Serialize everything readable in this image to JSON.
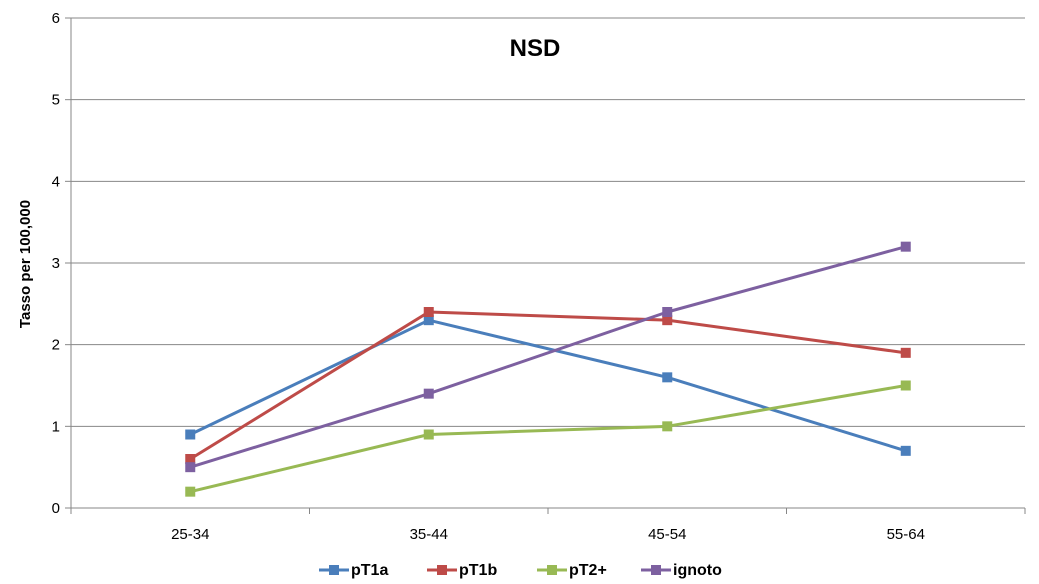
{
  "chart_data": {
    "type": "line",
    "title": "NSD",
    "xlabel": "",
    "ylabel": "Tasso per 100,000",
    "categories": [
      "25-34",
      "35-44",
      "45-54",
      "55-64"
    ],
    "ylim": [
      0,
      6
    ],
    "yticks": [
      "0",
      "1",
      "2",
      "3",
      "4",
      "5",
      "6"
    ],
    "grid": true,
    "legend_position": "bottom",
    "series": [
      {
        "name": "pT1a",
        "color": "#4a7ebb",
        "values": [
          0.9,
          2.3,
          1.6,
          0.7
        ]
      },
      {
        "name": "pT1b",
        "color": "#be4b48",
        "values": [
          0.6,
          2.4,
          2.3,
          1.9
        ]
      },
      {
        "name": "pT2+",
        "color": "#98b954",
        "values": [
          0.2,
          0.9,
          1.0,
          1.5
        ]
      },
      {
        "name": "ignoto",
        "color": "#7d60a0",
        "values": [
          0.5,
          1.4,
          2.4,
          3.2
        ]
      }
    ]
  }
}
